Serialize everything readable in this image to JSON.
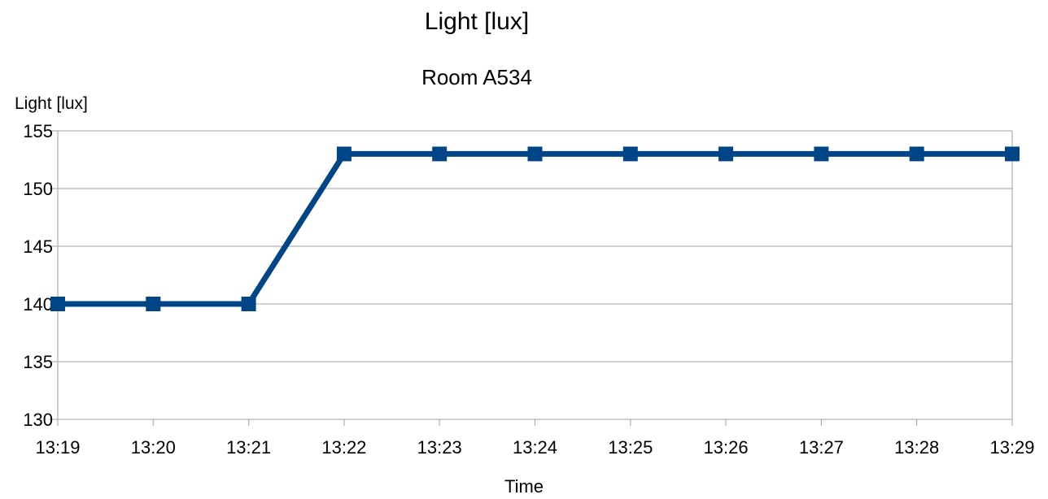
{
  "chart_data": {
    "type": "line",
    "title": "Light [lux]",
    "subtitle": "Room A534",
    "xlabel": "Time",
    "ylabel": "Light [lux]",
    "categories": [
      "13:19",
      "13:20",
      "13:21",
      "13:22",
      "13:23",
      "13:24",
      "13:25",
      "13:26",
      "13:27",
      "13:28",
      "13:29"
    ],
    "series": [
      {
        "values": [
          140,
          140,
          140,
          153,
          153,
          153,
          153,
          153,
          153,
          153,
          153
        ]
      }
    ],
    "ylim": [
      130,
      155
    ],
    "yticks": [
      130,
      135,
      140,
      145,
      150,
      155
    ],
    "grid": true,
    "legend": "none",
    "colors": {
      "series": "#004586",
      "grid": "#b3b3b3",
      "axis": "#b3b3b3"
    }
  }
}
